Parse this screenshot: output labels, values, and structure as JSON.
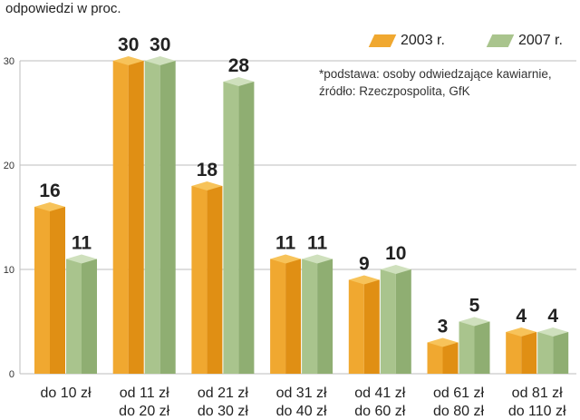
{
  "chart_data": {
    "type": "bar",
    "ylabel": "odpowiedzi w proc.",
    "ylim": [
      0,
      30
    ],
    "yticks": [
      0,
      10,
      20,
      30
    ],
    "categories": [
      [
        "do 10 zł"
      ],
      [
        "od 11 zł",
        "do 20 zł"
      ],
      [
        "od 21 zł",
        "do 30 zł"
      ],
      [
        "od 31 zł",
        "do 40 zł"
      ],
      [
        "od 41 zł",
        "do 60 zł"
      ],
      [
        "od 61 zł",
        "do 80 zł"
      ],
      [
        "od 81 zł",
        "do 110 zł"
      ]
    ],
    "series": [
      {
        "name": "2003 r.",
        "values": [
          16,
          30,
          18,
          11,
          9,
          3,
          4
        ],
        "color": "#f0a830",
        "color_light": "#f7c35a",
        "color_dark": "#e08f14"
      },
      {
        "name": "2007 r.",
        "values": [
          11,
          30,
          28,
          11,
          10,
          5,
          4
        ],
        "color": "#a9c48d",
        "color_light": "#cfe0bd",
        "color_dark": "#8fae72"
      }
    ],
    "note_lines": [
      "*podstawa: osoby odwiedzające kawiarnie,",
      "źródło:  Rzeczpospolita, GfK"
    ]
  }
}
